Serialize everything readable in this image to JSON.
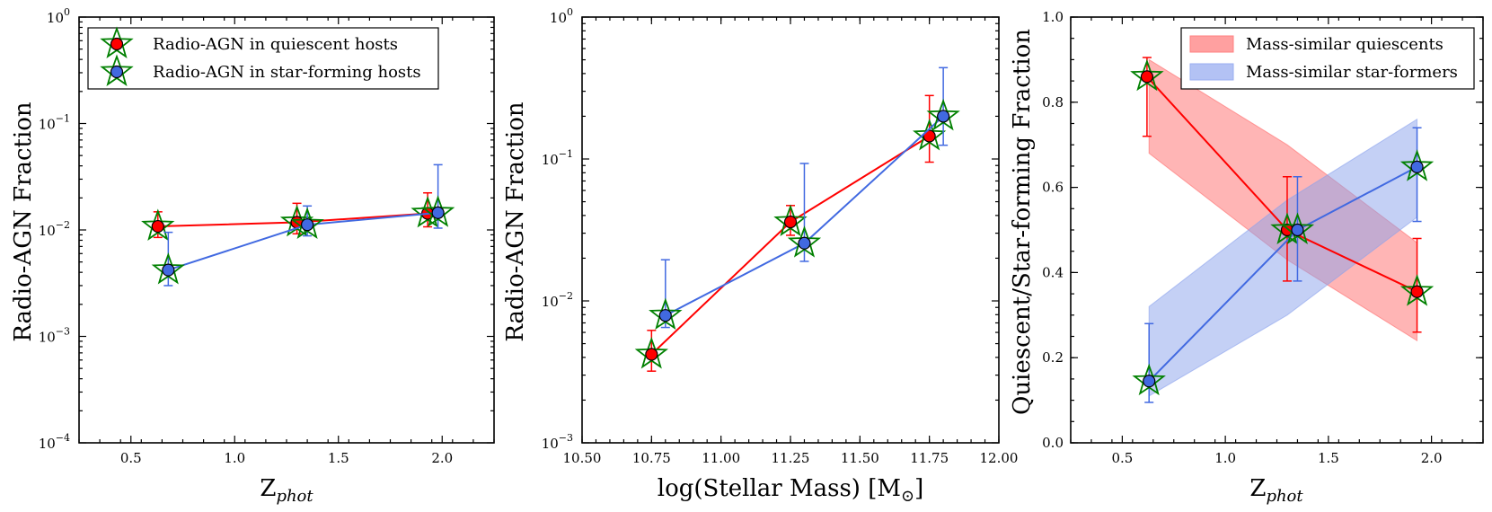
{
  "chart_data": [
    {
      "id": "panel1",
      "type": "scatter",
      "xscale": "linear",
      "yscale": "log",
      "xlim": [
        0.25,
        2.25
      ],
      "ylim": [
        0.0001,
        1
      ],
      "xlabel": "Z",
      "xlabel_sub": "phot",
      "ylabel": "Radio-AGN Fraction",
      "xticks": [
        0.5,
        1.0,
        1.5,
        2.0
      ],
      "xtick_labels": [
        "0.5",
        "1.0",
        "1.5",
        "2.0"
      ],
      "yticks": [
        0.0001,
        0.001,
        0.01,
        0.1,
        1
      ],
      "ytick_labels": [
        {
          "base": "10",
          "exp": "−4"
        },
        {
          "base": "10",
          "exp": "−3"
        },
        {
          "base": "10",
          "exp": "−2"
        },
        {
          "base": "10",
          "exp": "−1"
        },
        {
          "base": "10",
          "exp": "0"
        }
      ],
      "legend": {
        "position": "top-left",
        "entries": [
          {
            "label": "Radio-AGN in quiescent hosts",
            "marker": "circle-in-star",
            "color": "#ff0000"
          },
          {
            "label": "Radio-AGN in star-forming hosts",
            "marker": "circle-in-star",
            "color": "#4169e1"
          }
        ]
      },
      "series": [
        {
          "name": "Radio-AGN in quiescent hosts",
          "color": "#ff0000",
          "x": [
            0.63,
            1.3,
            1.93
          ],
          "y": [
            0.0108,
            0.0118,
            0.0143
          ],
          "yerr_low": [
            0.0085,
            0.0092,
            0.0107
          ],
          "yerr_high": [
            0.0148,
            0.0178,
            0.0223
          ]
        },
        {
          "name": "Radio-AGN in star-forming hosts",
          "color": "#4169e1",
          "x": [
            0.68,
            1.35,
            1.98
          ],
          "y": [
            0.0042,
            0.0112,
            0.0145
          ],
          "yerr_low": [
            0.003,
            0.0088,
            0.0104
          ],
          "yerr_high": [
            0.0095,
            0.0168,
            0.041
          ]
        }
      ]
    },
    {
      "id": "panel2",
      "type": "scatter",
      "xscale": "linear",
      "yscale": "log",
      "xlim": [
        10.5,
        12.0
      ],
      "ylim": [
        0.001,
        1
      ],
      "xlabel": "log(Stellar Mass) [M",
      "xlabel_sub": "⊙",
      "xlabel_end": "]",
      "ylabel": "Radio-AGN Fraction",
      "xticks": [
        10.5,
        10.75,
        11.0,
        11.25,
        11.5,
        11.75,
        12.0
      ],
      "xtick_labels": [
        "10.50",
        "10.75",
        "11.00",
        "11.25",
        "11.50",
        "11.75",
        "12.00"
      ],
      "yticks": [
        0.001,
        0.01,
        0.1,
        1
      ],
      "ytick_labels": [
        {
          "base": "10",
          "exp": "−3"
        },
        {
          "base": "10",
          "exp": "−2"
        },
        {
          "base": "10",
          "exp": "−1"
        },
        {
          "base": "10",
          "exp": "0"
        }
      ],
      "series": [
        {
          "name": "quiescent",
          "color": "#ff0000",
          "x": [
            10.75,
            11.25,
            11.75
          ],
          "y": [
            0.0042,
            0.036,
            0.145
          ],
          "yerr_low": [
            0.0032,
            0.029,
            0.095
          ],
          "yerr_high": [
            0.0062,
            0.047,
            0.28
          ]
        },
        {
          "name": "star-forming",
          "color": "#4169e1",
          "x": [
            10.8,
            11.3,
            11.8
          ],
          "y": [
            0.0079,
            0.0255,
            0.2
          ],
          "yerr_low": [
            0.0065,
            0.019,
            0.125
          ],
          "yerr_high": [
            0.0195,
            0.093,
            0.44
          ]
        }
      ]
    },
    {
      "id": "panel3",
      "type": "scatter",
      "xscale": "linear",
      "yscale": "linear",
      "xlim": [
        0.25,
        2.25
      ],
      "ylim": [
        0,
        1
      ],
      "xlabel": "Z",
      "xlabel_sub": "phot",
      "ylabel": "Quiescent/Star-forming Fraction",
      "xticks": [
        0.5,
        1.0,
        1.5,
        2.0
      ],
      "xtick_labels": [
        "0.5",
        "1.0",
        "1.5",
        "2.0"
      ],
      "yticks": [
        0,
        0.2,
        0.4,
        0.6,
        0.8,
        1.0
      ],
      "ytick_labels": [
        "0.0",
        "0.2",
        "0.4",
        "0.6",
        "0.8",
        "1.0"
      ],
      "legend": {
        "position": "top-right",
        "entries": [
          {
            "label": "Mass-similar quiescents",
            "color": "#ff8080"
          },
          {
            "label": "Mass-similar star-formers",
            "color": "#9aaef0"
          }
        ]
      },
      "bands": [
        {
          "name": "Mass-similar quiescents",
          "color": "#ff6b6b",
          "opacity": 0.5,
          "x": [
            0.63,
            1.3,
            1.93
          ],
          "low": [
            0.68,
            0.43,
            0.24
          ],
          "high": [
            0.9,
            0.7,
            0.47
          ]
        },
        {
          "name": "Mass-similar star-formers",
          "color": "#8aa2ec",
          "opacity": 0.5,
          "x": [
            0.63,
            1.3,
            1.93
          ],
          "low": [
            0.11,
            0.3,
            0.53
          ],
          "high": [
            0.32,
            0.57,
            0.76
          ]
        }
      ],
      "series": [
        {
          "name": "quiescent",
          "color": "#ff0000",
          "x": [
            0.62,
            1.3,
            1.93
          ],
          "y": [
            0.86,
            0.5,
            0.355
          ],
          "yerr_low": [
            0.72,
            0.38,
            0.26
          ],
          "yerr_high": [
            0.905,
            0.625,
            0.48
          ]
        },
        {
          "name": "star-forming",
          "color": "#4169e1",
          "x": [
            0.63,
            1.35,
            1.93
          ],
          "y": [
            0.145,
            0.5,
            0.648
          ],
          "yerr_low": [
            0.095,
            0.38,
            0.52
          ],
          "yerr_high": [
            0.28,
            0.625,
            0.74
          ]
        }
      ]
    }
  ]
}
